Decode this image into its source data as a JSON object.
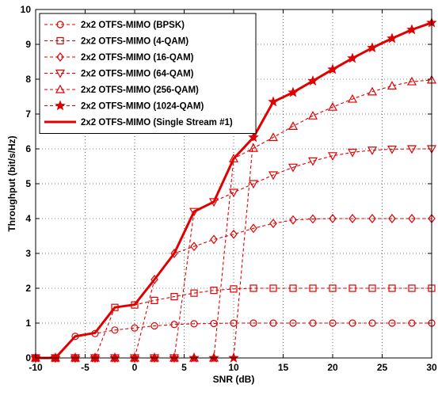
{
  "chart_data": {
    "type": "line",
    "title": "",
    "xlabel": "SNR (dB)",
    "ylabel": "Throughput (bit/s/Hz)",
    "xlim": [
      -10,
      30
    ],
    "ylim": [
      0,
      10
    ],
    "x_ticks": [
      -10,
      -5,
      0,
      5,
      10,
      15,
      20,
      25,
      30
    ],
    "y_ticks": [
      0,
      1,
      2,
      3,
      4,
      5,
      6,
      7,
      8,
      9,
      10
    ],
    "x_tick_labels": [
      "-10",
      "-5",
      "0",
      "5",
      "10",
      "15",
      "20",
      "25",
      "30"
    ],
    "y_tick_labels": [
      "0",
      "1",
      "2",
      "3",
      "4",
      "5",
      "6",
      "7",
      "8",
      "9",
      "10"
    ],
    "grid": true,
    "legend_position": "top-left",
    "color": "#e00000",
    "series": [
      {
        "name": "2x2 OTFS-MIMO (BPSK)",
        "marker": "circle",
        "line_style": "dashed",
        "x": [
          -10,
          -8,
          -6,
          -4,
          -2,
          0,
          2,
          4,
          6,
          8,
          10,
          12,
          14,
          16,
          18,
          20,
          22,
          24,
          26,
          28,
          30
        ],
        "y": [
          0,
          0,
          0.62,
          0.7,
          0.8,
          0.86,
          0.92,
          0.96,
          0.98,
          0.99,
          1.0,
          1.0,
          1.0,
          1.0,
          1.0,
          1.0,
          1.0,
          1.0,
          1.0,
          1.0,
          1.0
        ]
      },
      {
        "name": "2x2 OTFS-MIMO (4-QAM)",
        "marker": "square",
        "line_style": "dashed",
        "x": [
          -10,
          -8,
          -6,
          -4,
          -2,
          0,
          2,
          4,
          6,
          8,
          10,
          12,
          14,
          16,
          18,
          20,
          22,
          24,
          26,
          28,
          30
        ],
        "y": [
          0,
          0,
          0,
          0,
          1.45,
          1.52,
          1.65,
          1.76,
          1.86,
          1.94,
          1.98,
          2.0,
          2.0,
          2.0,
          2.0,
          2.0,
          2.0,
          2.0,
          2.0,
          2.0,
          2.0
        ]
      },
      {
        "name": "2x2 OTFS-MIMO (16-QAM)",
        "marker": "diamond",
        "line_style": "dashed",
        "x": [
          -10,
          -8,
          -6,
          -4,
          -2,
          0,
          2,
          4,
          6,
          8,
          10,
          12,
          14,
          16,
          18,
          20,
          22,
          24,
          26,
          28,
          30
        ],
        "y": [
          0,
          0,
          0,
          0,
          0,
          0,
          2.25,
          3.0,
          3.2,
          3.4,
          3.55,
          3.72,
          3.86,
          3.96,
          3.99,
          4.0,
          4.0,
          4.0,
          4.0,
          4.0,
          4.0
        ]
      },
      {
        "name": "2x2 OTFS-MIMO (64-QAM)",
        "marker": "triangle-down",
        "line_style": "dashed",
        "x": [
          -10,
          -8,
          -6,
          -4,
          -2,
          0,
          2,
          4,
          6,
          8,
          10,
          12,
          14,
          16,
          18,
          20,
          22,
          24,
          26,
          28,
          30
        ],
        "y": [
          0,
          0,
          0,
          0,
          0,
          0,
          0,
          0,
          4.2,
          4.48,
          4.75,
          5.0,
          5.25,
          5.47,
          5.65,
          5.8,
          5.9,
          5.96,
          5.99,
          6.0,
          6.0
        ]
      },
      {
        "name": "2x2 OTFS-MIMO (256-QAM)",
        "marker": "triangle-up",
        "line_style": "dashed",
        "x": [
          -10,
          -8,
          -6,
          -4,
          -2,
          0,
          2,
          4,
          6,
          8,
          10,
          12,
          14,
          16,
          18,
          20,
          22,
          24,
          26,
          28,
          30
        ],
        "y": [
          0,
          0,
          0,
          0,
          0,
          0,
          0,
          0,
          0,
          0,
          5.72,
          6.02,
          6.33,
          6.65,
          6.95,
          7.2,
          7.43,
          7.64,
          7.81,
          7.93,
          7.98
        ]
      },
      {
        "name": "2x2 OTFS-MIMO (1024-QAM)",
        "marker": "star",
        "line_style": "dashed",
        "x": [
          -10,
          -8,
          -6,
          -4,
          -2,
          0,
          2,
          4,
          6,
          8,
          10,
          12,
          14,
          16,
          18,
          20,
          22,
          24,
          26,
          28,
          30
        ],
        "y": [
          0,
          0,
          0,
          0,
          0,
          0,
          0,
          0,
          0,
          0,
          0,
          6.33,
          7.35,
          7.62,
          7.95,
          8.28,
          8.6,
          8.9,
          9.17,
          9.42,
          9.62
        ]
      },
      {
        "name": "2x2 OTFS-MIMO (Single Stream #1)",
        "marker": "none",
        "line_style": "solid",
        "x": [
          -10,
          -8,
          -6,
          -4,
          -2,
          0,
          2,
          4,
          6,
          8,
          10,
          12,
          14,
          16,
          18,
          20,
          22,
          24,
          26,
          28,
          30
        ],
        "y": [
          0,
          0,
          0.62,
          0.72,
          1.45,
          1.53,
          2.25,
          3.0,
          4.2,
          4.48,
          5.72,
          6.33,
          7.35,
          7.62,
          7.95,
          8.28,
          8.6,
          8.9,
          9.17,
          9.42,
          9.62
        ]
      }
    ]
  }
}
